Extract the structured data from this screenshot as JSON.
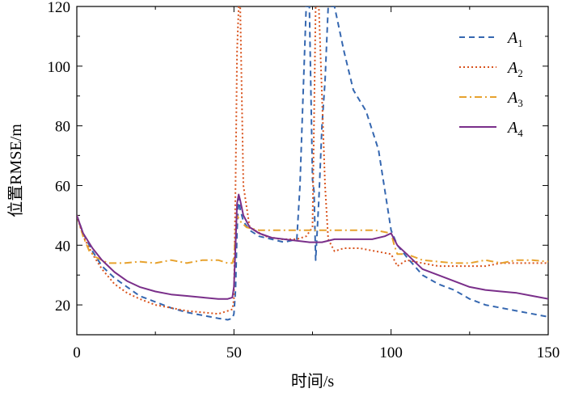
{
  "chart_data": {
    "type": "line",
    "title": "",
    "xlabel": "时间/s",
    "ylabel": "位置RMSE/m",
    "xlim": [
      0,
      150
    ],
    "ylim": [
      10,
      120
    ],
    "xticks": [
      "0",
      "50",
      "100",
      "150"
    ],
    "yticks": [
      "20",
      "40",
      "60",
      "80",
      "100",
      "120"
    ],
    "grid": false,
    "legend_position": "top-right",
    "series": [
      {
        "name": "A1",
        "label_main": "A",
        "label_sub": "1",
        "color": "#3567b0",
        "style": "dashed",
        "x": [
          0,
          2,
          5,
          8,
          12,
          16,
          20,
          25,
          30,
          35,
          40,
          45,
          48,
          49.5,
          50,
          50.5,
          51,
          51.5,
          52,
          53,
          55,
          58,
          62,
          66,
          70,
          71,
          72,
          73,
          74,
          75,
          75.5,
          76,
          77,
          78,
          79,
          80,
          82,
          85,
          88,
          92,
          96,
          100,
          102,
          105,
          110,
          115,
          120,
          125,
          130,
          135,
          140,
          145,
          150
        ],
        "y": [
          50,
          44,
          38,
          33,
          29,
          26,
          23,
          21,
          19,
          17.5,
          16.5,
          15.5,
          15,
          15.5,
          17,
          25,
          45,
          56,
          52,
          48,
          45,
          43,
          42,
          41,
          42,
          60,
          90,
          120,
          120,
          62,
          58,
          35,
          55,
          80,
          95,
          120,
          120,
          105,
          92,
          85,
          72,
          45,
          40,
          36,
          30,
          27,
          25,
          22,
          20,
          19,
          18,
          17,
          16
        ]
      },
      {
        "name": "A2",
        "label_main": "A",
        "label_sub": "2",
        "color": "#d9541e",
        "style": "dotted",
        "x": [
          0,
          2,
          5,
          8,
          12,
          16,
          20,
          25,
          30,
          35,
          40,
          45,
          48,
          49.5,
          50,
          50.5,
          51,
          51.5,
          52,
          53,
          55,
          60,
          65,
          70,
          73,
          75,
          76,
          77,
          78,
          79,
          80,
          82,
          85,
          90,
          95,
          100,
          101,
          102,
          105,
          110,
          115,
          120,
          125,
          130,
          135,
          140,
          145,
          150
        ],
        "y": [
          50,
          43,
          37,
          32,
          27,
          24,
          22,
          20,
          19,
          18,
          17.5,
          17,
          18,
          18.5,
          22,
          60,
          105,
          120,
          120,
          60,
          46,
          43,
          42,
          42,
          43,
          46,
          120,
          120,
          90,
          60,
          42,
          38,
          39,
          39,
          38,
          37,
          35,
          33,
          35,
          34,
          33,
          33,
          33,
          33,
          34,
          34,
          34,
          34
        ]
      },
      {
        "name": "A3",
        "label_main": "A",
        "label_sub": "3",
        "color": "#e7a22e",
        "style": "dashdot",
        "x": [
          0,
          2,
          4,
          6,
          8,
          10,
          15,
          20,
          25,
          30,
          35,
          40,
          45,
          48,
          49.5,
          50,
          50.5,
          51,
          52,
          54,
          58,
          62,
          66,
          70,
          75,
          80,
          85,
          90,
          95,
          100,
          101,
          102,
          105,
          110,
          115,
          120,
          125,
          130,
          135,
          140,
          145,
          150
        ],
        "y": [
          50,
          43,
          38,
          36,
          35,
          34,
          34,
          34.5,
          34,
          35,
          34,
          35,
          35,
          34,
          34,
          36,
          44,
          50,
          48,
          46,
          45,
          45,
          45,
          45,
          45,
          45,
          45,
          45,
          45,
          44,
          40,
          37,
          37,
          35,
          34.5,
          34,
          34,
          35,
          34,
          35,
          35,
          34.5
        ]
      },
      {
        "name": "A4",
        "label_main": "A",
        "label_sub": "4",
        "color": "#7a2f8a",
        "style": "solid",
        "x": [
          0,
          2,
          5,
          8,
          12,
          16,
          20,
          25,
          30,
          35,
          40,
          45,
          48,
          49.5,
          50,
          50.5,
          51,
          51.5,
          52,
          53,
          55,
          58,
          62,
          66,
          70,
          74,
          78,
          82,
          86,
          90,
          94,
          98,
          100,
          102,
          105,
          110,
          115,
          120,
          125,
          130,
          135,
          140,
          145,
          150
        ],
        "y": [
          50,
          44,
          39,
          35,
          31,
          28,
          26,
          24.5,
          23.5,
          23,
          22.5,
          22,
          22,
          22.5,
          26,
          40,
          54,
          57,
          55,
          50,
          46,
          44,
          42.5,
          42,
          41.5,
          41,
          41,
          42,
          42,
          42,
          42,
          43,
          44,
          40,
          37,
          32,
          30,
          28,
          26,
          25,
          24.5,
          24,
          23,
          22
        ]
      }
    ]
  }
}
